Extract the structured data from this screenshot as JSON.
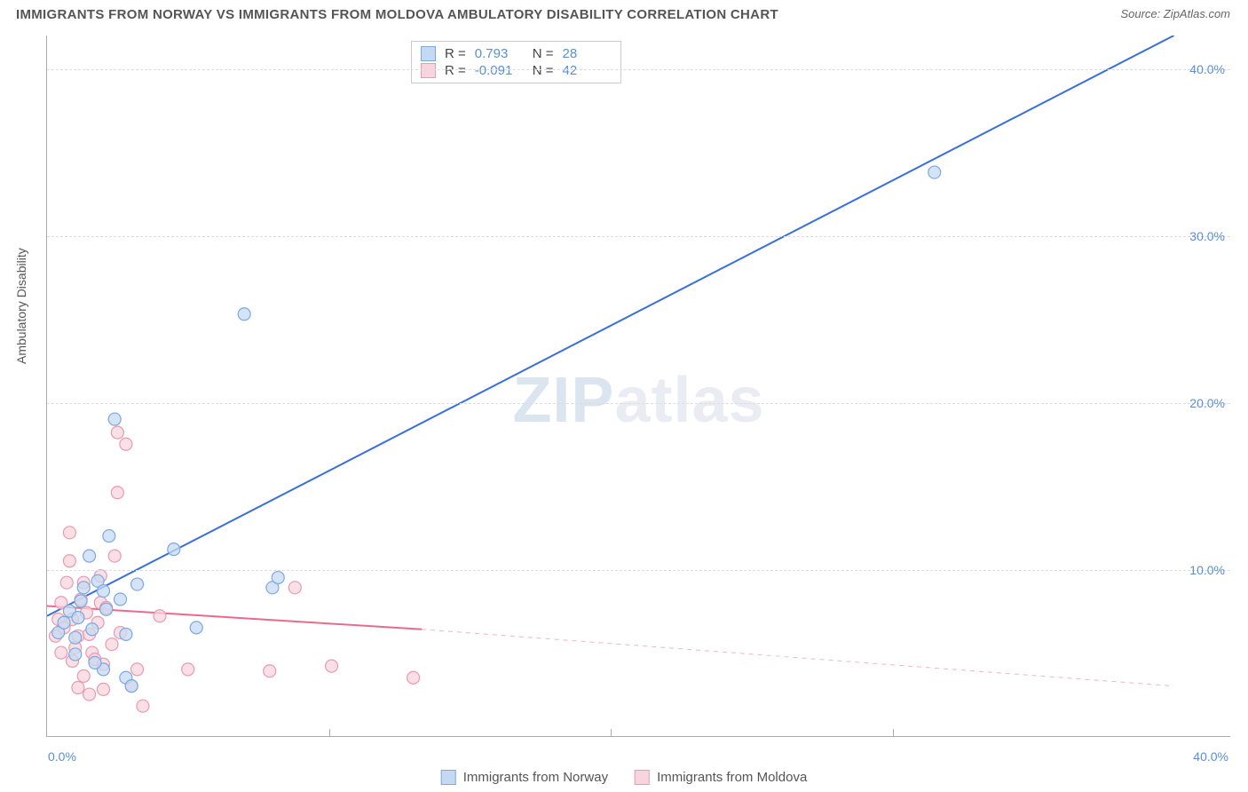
{
  "header": {
    "title": "IMMIGRANTS FROM NORWAY VS IMMIGRANTS FROM MOLDOVA AMBULATORY DISABILITY CORRELATION CHART",
    "source": "Source: ZipAtlas.com"
  },
  "ylabel": "Ambulatory Disability",
  "watermark_a": "ZIP",
  "watermark_b": "atlas",
  "chart": {
    "type": "scatter",
    "xlim": [
      0,
      42
    ],
    "ylim": [
      0,
      42
    ],
    "yticks": [
      10,
      20,
      30,
      40
    ],
    "ytick_labels": [
      "10.0%",
      "20.0%",
      "30.0%",
      "40.0%"
    ],
    "xtick_left": "0.0%",
    "xtick_right": "40.0%",
    "grid_color": "#dddddd",
    "background_color": "#ffffff",
    "axis_color": "#aaaaaa",
    "marker_radius": 7,
    "marker_stroke_width": 1.2,
    "line_width": 2
  },
  "series": [
    {
      "name": "Immigrants from Norway",
      "color_fill": "#c5d9f1",
      "color_stroke": "#7ba8de",
      "line_color": "#3a6fd8",
      "R_label": "R =",
      "R": "0.793",
      "N_label": "N =",
      "N": "28",
      "trend": {
        "x1": 0,
        "y1": 7.2,
        "x2": 40,
        "y2": 42,
        "dash_from_x": 42
      },
      "points": [
        [
          0.4,
          6.2
        ],
        [
          0.6,
          6.8
        ],
        [
          0.8,
          7.5
        ],
        [
          1.0,
          5.9
        ],
        [
          1.1,
          7.1
        ],
        [
          1.2,
          8.1
        ],
        [
          1.3,
          8.9
        ],
        [
          1.5,
          10.8
        ],
        [
          1.6,
          6.4
        ],
        [
          1.8,
          9.3
        ],
        [
          2.0,
          8.7
        ],
        [
          2.1,
          7.6
        ],
        [
          2.2,
          12.0
        ],
        [
          2.4,
          19.0
        ],
        [
          2.6,
          8.2
        ],
        [
          2.8,
          6.1
        ],
        [
          2.8,
          3.5
        ],
        [
          3.0,
          3.0
        ],
        [
          3.2,
          9.1
        ],
        [
          4.5,
          11.2
        ],
        [
          5.3,
          6.5
        ],
        [
          7.0,
          25.3
        ],
        [
          8.0,
          8.9
        ],
        [
          8.2,
          9.5
        ],
        [
          2.0,
          4.0
        ],
        [
          1.7,
          4.4
        ],
        [
          1.0,
          4.9
        ],
        [
          31.5,
          33.8
        ]
      ]
    },
    {
      "name": "Immigrants from Moldova",
      "color_fill": "#f7d5de",
      "color_stroke": "#e99ab1",
      "line_color": "#e86b8e",
      "R_label": "R =",
      "R": "-0.091",
      "N_label": "N =",
      "N": "42",
      "trend": {
        "x1": 0,
        "y1": 7.8,
        "x2": 13.3,
        "y2": 6.4,
        "dash_from_x": 13.3,
        "dash_x2": 40,
        "dash_y2": 3.0
      },
      "points": [
        [
          0.3,
          6.0
        ],
        [
          0.4,
          7.0
        ],
        [
          0.5,
          8.0
        ],
        [
          0.6,
          6.5
        ],
        [
          0.7,
          9.2
        ],
        [
          0.8,
          10.5
        ],
        [
          0.8,
          12.2
        ],
        [
          0.9,
          7.0
        ],
        [
          1.0,
          5.3
        ],
        [
          1.1,
          6.0
        ],
        [
          1.2,
          8.2
        ],
        [
          1.3,
          9.2
        ],
        [
          1.4,
          7.4
        ],
        [
          1.5,
          6.1
        ],
        [
          1.6,
          5.0
        ],
        [
          1.7,
          4.6
        ],
        [
          1.8,
          6.8
        ],
        [
          1.9,
          8.0
        ],
        [
          2.0,
          4.3
        ],
        [
          2.1,
          7.7
        ],
        [
          2.3,
          5.5
        ],
        [
          2.4,
          10.8
        ],
        [
          2.5,
          14.6
        ],
        [
          2.5,
          18.2
        ],
        [
          2.6,
          6.2
        ],
        [
          2.8,
          17.5
        ],
        [
          3.0,
          3.0
        ],
        [
          3.2,
          4.0
        ],
        [
          3.4,
          1.8
        ],
        [
          1.1,
          2.9
        ],
        [
          1.5,
          2.5
        ],
        [
          2.0,
          2.8
        ],
        [
          4.0,
          7.2
        ],
        [
          5.0,
          4.0
        ],
        [
          7.9,
          3.9
        ],
        [
          8.8,
          8.9
        ],
        [
          10.1,
          4.2
        ],
        [
          13.0,
          3.5
        ],
        [
          0.5,
          5.0
        ],
        [
          0.9,
          4.5
        ],
        [
          1.3,
          3.6
        ],
        [
          1.9,
          9.6
        ]
      ]
    }
  ],
  "legend_bottom": [
    {
      "label": "Immigrants from Norway",
      "fill": "#c5d9f1",
      "stroke": "#7ba8de"
    },
    {
      "label": "Immigrants from Moldova",
      "fill": "#f7d5de",
      "stroke": "#e99ab1"
    }
  ]
}
